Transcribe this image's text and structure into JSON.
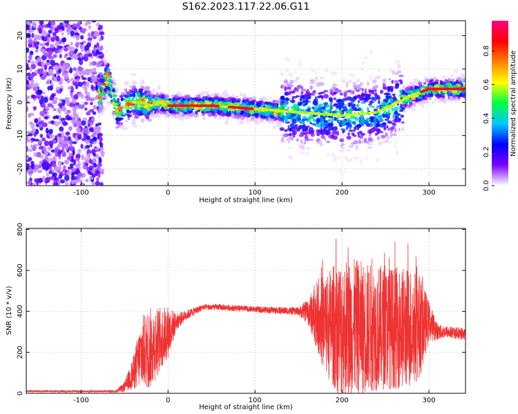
{
  "title": "S162.2023.117.22.06.G11",
  "chart_data": [
    {
      "type": "heatmap",
      "title": "S162.2023.117.22.06.G11",
      "xlabel": "Height of straight line (km)",
      "ylabel": "Frequency (Hz)",
      "xlim": [
        -163,
        342
      ],
      "ylim": [
        -25,
        24.5
      ],
      "x_ticks": [
        -100,
        0,
        100,
        200,
        300
      ],
      "y_ticks": [
        -20,
        -10,
        0,
        10,
        20
      ],
      "colorbar": {
        "label": "Normalized spectral amplitude",
        "range": [
          0,
          0.98
        ],
        "ticks": [
          0.0,
          0.2,
          0.4,
          0.6,
          0.8
        ],
        "colormap": [
          "#ffffff",
          "#7a00ff",
          "#0000ff",
          "#00c8ff",
          "#00ff40",
          "#ffff00",
          "#ff8000",
          "#ff0000",
          "#ff0080"
        ]
      },
      "ridge": {
        "description_points_x": [
          -78,
          -70,
          -58,
          -50,
          -40,
          -30,
          -20,
          -10,
          0,
          50,
          100,
          150,
          200,
          240,
          280,
          300,
          342
        ],
        "frequency_hz": [
          2,
          8,
          -3,
          -1,
          0,
          0,
          -1,
          0,
          -1,
          -1,
          -2,
          -3,
          -4,
          -3,
          2,
          4,
          4
        ]
      },
      "grid": true
    },
    {
      "type": "line",
      "xlabel": "Height of straight line (km)",
      "ylabel": "SNR (10 * v/v)",
      "xlim": [
        -163,
        342
      ],
      "ylim": [
        0,
        805
      ],
      "x_ticks": [
        -100,
        0,
        100,
        200,
        300
      ],
      "y_ticks": [
        0,
        200,
        400,
        600,
        800
      ],
      "series": [
        {
          "color": "#ee3333",
          "envelope_x": [
            -163,
            -60,
            -50,
            -40,
            -30,
            -20,
            -10,
            0,
            10,
            20,
            30,
            40,
            60,
            100,
            150,
            160,
            170,
            180,
            200,
            220,
            250,
            280,
            290,
            300,
            310,
            320,
            342
          ],
          "envelope_mean": [
            10,
            10,
            30,
            100,
            200,
            220,
            260,
            300,
            350,
            380,
            400,
            420,
            420,
            410,
            400,
            400,
            380,
            340,
            320,
            320,
            320,
            320,
            330,
            350,
            300,
            300,
            290
          ],
          "envelope_halfrange": [
            5,
            5,
            25,
            80,
            180,
            200,
            160,
            130,
            40,
            25,
            20,
            15,
            15,
            15,
            20,
            60,
            150,
            250,
            350,
            330,
            300,
            300,
            250,
            100,
            40,
            30,
            30
          ]
        }
      ],
      "grid": true
    }
  ]
}
